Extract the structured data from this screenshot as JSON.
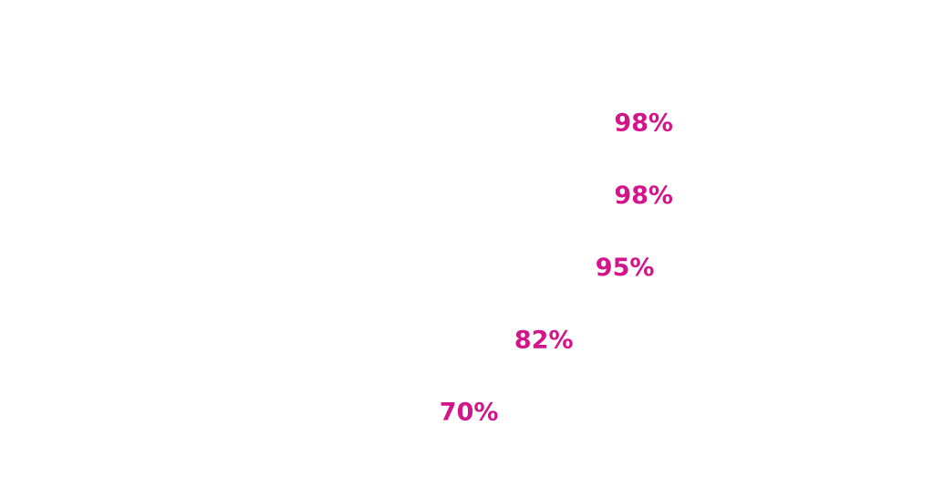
{
  "chart_data": {
    "type": "bar",
    "orientation": "horizontal",
    "categories": [
      "",
      "",
      "",
      "",
      ""
    ],
    "values": [
      98,
      98,
      95,
      82,
      70
    ],
    "data_labels": [
      "98%",
      "98%",
      "95%",
      "82%",
      "70%"
    ],
    "unit": "%",
    "label_color": "#d4148b",
    "bar_color": "#ffffff",
    "xlim": [
      0,
      100
    ],
    "grid": false,
    "legend": "none"
  }
}
